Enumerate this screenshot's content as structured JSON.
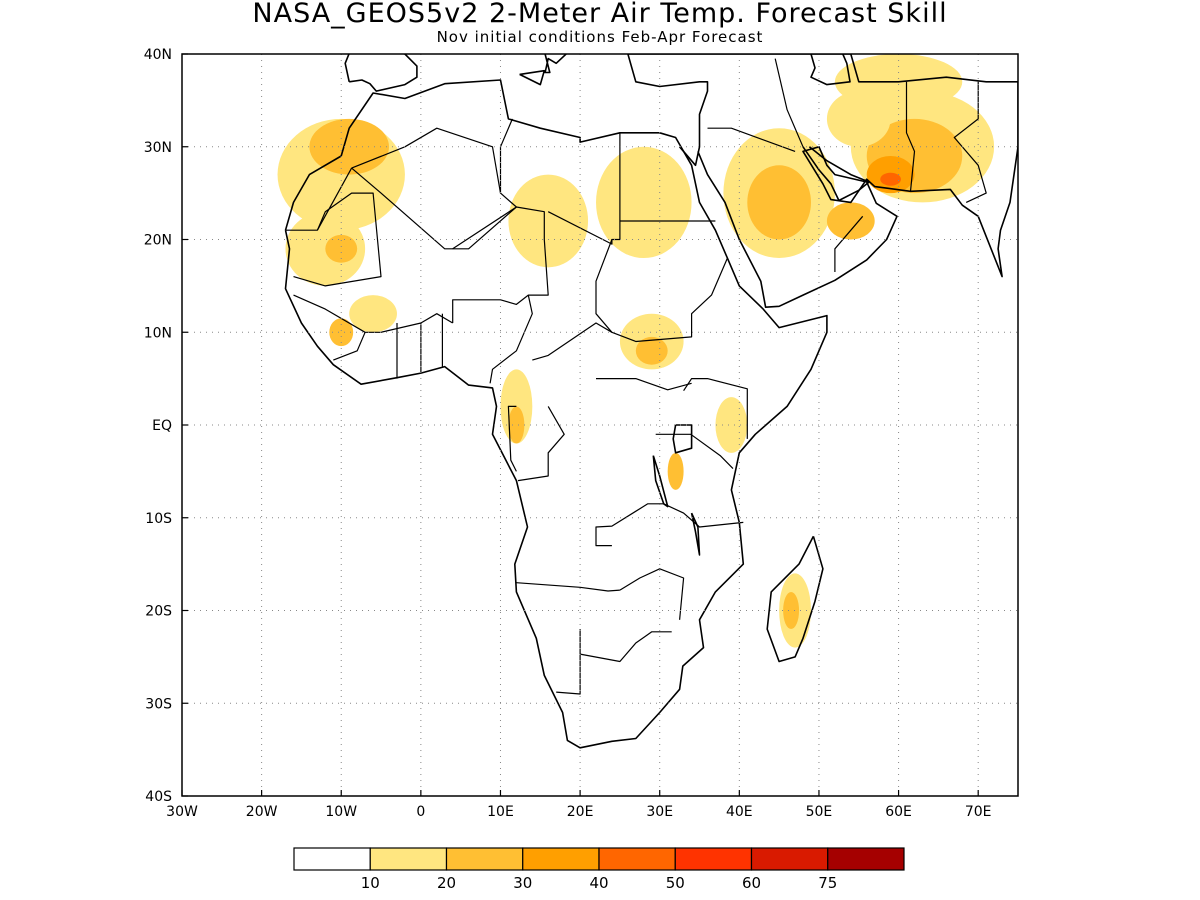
{
  "title": "NASA_GEOS5v2 2-Meter Air Temp. Forecast Skill",
  "subtitle": "Nov initial conditions  Feb-Apr Forecast",
  "map": {
    "lon_range": [
      -30,
      75
    ],
    "lat_range": [
      -40,
      40
    ],
    "gridlines": "dotted",
    "x_ticks": [
      {
        "value": -30,
        "label": "30W"
      },
      {
        "value": -20,
        "label": "20W"
      },
      {
        "value": -10,
        "label": "10W"
      },
      {
        "value": 0,
        "label": "0"
      },
      {
        "value": 10,
        "label": "10E"
      },
      {
        "value": 20,
        "label": "20E"
      },
      {
        "value": 30,
        "label": "30E"
      },
      {
        "value": 40,
        "label": "40E"
      },
      {
        "value": 50,
        "label": "50E"
      },
      {
        "value": 60,
        "label": "60E"
      },
      {
        "value": 70,
        "label": "70E"
      }
    ],
    "y_ticks": [
      {
        "value": 40,
        "label": "40N"
      },
      {
        "value": 30,
        "label": "30N"
      },
      {
        "value": 20,
        "label": "20N"
      },
      {
        "value": 10,
        "label": "10N"
      },
      {
        "value": 0,
        "label": "EQ"
      },
      {
        "value": -10,
        "label": "10S"
      },
      {
        "value": -20,
        "label": "20S"
      },
      {
        "value": -30,
        "label": "30S"
      },
      {
        "value": -40,
        "label": "40S"
      }
    ]
  },
  "colorbar": {
    "colors": [
      "#ffffff",
      "#ffe680",
      "#ffbf33",
      "#ff9f00",
      "#ff6600",
      "#ff3300",
      "#d91a00",
      "#a50000"
    ],
    "labels": [
      "10",
      "20",
      "30",
      "40",
      "50",
      "60",
      "75"
    ]
  },
  "skill_regions": [
    {
      "level": 1,
      "lon": -10,
      "lat": 27,
      "rlon": 8,
      "rlat": 6
    },
    {
      "level": 2,
      "lon": -9,
      "lat": 30,
      "rlon": 5,
      "rlat": 3
    },
    {
      "level": 1,
      "lon": -12,
      "lat": 19,
      "rlon": 5,
      "rlat": 4
    },
    {
      "level": 2,
      "lon": -10,
      "lat": 19,
      "rlon": 2,
      "rlat": 1.5
    },
    {
      "level": 1,
      "lon": 28,
      "lat": 24,
      "rlon": 6,
      "rlat": 6
    },
    {
      "level": 1,
      "lon": 45,
      "lat": 25,
      "rlon": 7,
      "rlat": 7
    },
    {
      "level": 2,
      "lon": 45,
      "lat": 24,
      "rlon": 4,
      "rlat": 4
    },
    {
      "level": 1,
      "lon": 63,
      "lat": 30,
      "rlon": 9,
      "rlat": 6
    },
    {
      "level": 2,
      "lon": 62,
      "lat": 29,
      "rlon": 6,
      "rlat": 4
    },
    {
      "level": 3,
      "lon": 59,
      "lat": 27,
      "rlon": 3,
      "rlat": 2
    },
    {
      "level": 4,
      "lon": 59,
      "lat": 26.5,
      "rlon": 1.3,
      "rlat": 0.7
    },
    {
      "level": 2,
      "lon": 54,
      "lat": 22,
      "rlon": 3,
      "rlat": 2
    },
    {
      "level": 1,
      "lon": 29,
      "lat": 9,
      "rlon": 4,
      "rlat": 3
    },
    {
      "level": 2,
      "lon": 29,
      "lat": 8,
      "rlon": 2,
      "rlat": 1.5
    },
    {
      "level": 1,
      "lon": 12,
      "lat": 2,
      "rlon": 2,
      "rlat": 4
    },
    {
      "level": 2,
      "lon": 12,
      "lat": 0,
      "rlon": 1,
      "rlat": 2
    },
    {
      "level": 1,
      "lon": 39,
      "lat": 0,
      "rlon": 2,
      "rlat": 3
    },
    {
      "level": 2,
      "lon": 32,
      "lat": -5,
      "rlon": 1,
      "rlat": 2
    },
    {
      "level": 1,
      "lon": 47,
      "lat": -20,
      "rlon": 2,
      "rlat": 4
    },
    {
      "level": 2,
      "lon": 46.5,
      "lat": -20,
      "rlon": 1,
      "rlat": 2
    },
    {
      "level": 1,
      "lon": 16,
      "lat": 22,
      "rlon": 5,
      "rlat": 5
    },
    {
      "level": 1,
      "lon": -6,
      "lat": 12,
      "rlon": 3,
      "rlat": 2
    },
    {
      "level": 2,
      "lon": -10,
      "lat": 10,
      "rlon": 1.5,
      "rlat": 1.5
    },
    {
      "level": 1,
      "lon": 60,
      "lat": 37,
      "rlon": 8,
      "rlat": 3
    },
    {
      "level": 1,
      "lon": 55,
      "lat": 33,
      "rlon": 4,
      "rlat": 3
    }
  ]
}
